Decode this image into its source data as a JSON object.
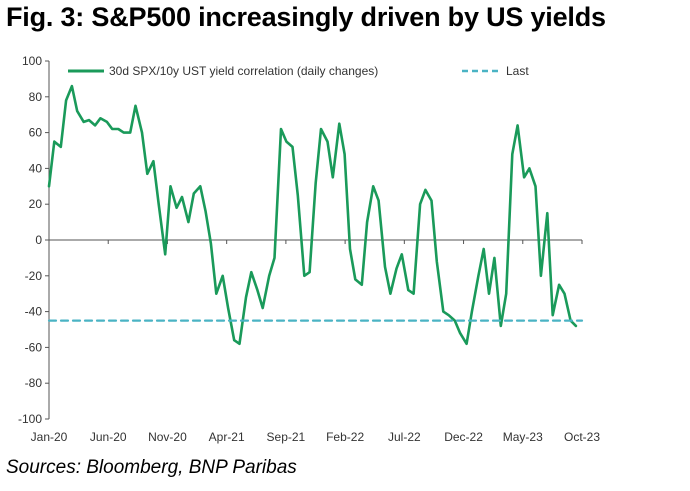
{
  "title": "Fig. 3: S&P500 increasingly driven by US yields",
  "source": "Sources: Bloomberg, BNP Paribas",
  "colors": {
    "series": "#1a9a5a",
    "last": "#4ab3c4",
    "axis": "#555555"
  },
  "chart_data": {
    "type": "line",
    "title": "Fig. 3: S&P500 increasingly driven by US yields",
    "xlabel": "",
    "ylabel": "",
    "ylim": [
      -100,
      100
    ],
    "yticks": [
      100,
      80,
      60,
      40,
      20,
      0,
      -20,
      -40,
      -60,
      -80,
      -100
    ],
    "xlim": [
      "2020-01-01",
      "2023-10-31"
    ],
    "xticks": [
      "Jan-20",
      "Jun-20",
      "Nov-20",
      "Apr-21",
      "Sep-21",
      "Feb-22",
      "Jul-22",
      "Dec-22",
      "May-23",
      "Oct-23"
    ],
    "grid": false,
    "legend": "top",
    "series": [
      {
        "name": "30d SPX/10y UST yield correlation (daily changes)",
        "style": "solid",
        "x": [
          "2020-01-01",
          "2020-01-15",
          "2020-02-01",
          "2020-02-15",
          "2020-03-01",
          "2020-03-15",
          "2020-04-01",
          "2020-04-15",
          "2020-05-01",
          "2020-05-15",
          "2020-06-01",
          "2020-06-15",
          "2020-07-01",
          "2020-07-15",
          "2020-08-01",
          "2020-08-15",
          "2020-09-01",
          "2020-09-15",
          "2020-10-01",
          "2020-10-15",
          "2020-11-01",
          "2020-11-15",
          "2020-12-01",
          "2020-12-15",
          "2021-01-01",
          "2021-01-15",
          "2021-02-01",
          "2021-02-15",
          "2021-03-01",
          "2021-03-15",
          "2021-04-01",
          "2021-04-15",
          "2021-05-01",
          "2021-05-15",
          "2021-06-01",
          "2021-06-15",
          "2021-07-01",
          "2021-07-15",
          "2021-08-01",
          "2021-08-15",
          "2021-09-01",
          "2021-09-15",
          "2021-10-01",
          "2021-10-15",
          "2021-11-01",
          "2021-11-15",
          "2021-12-01",
          "2021-12-15",
          "2022-01-01",
          "2022-01-15",
          "2022-02-01",
          "2022-02-15",
          "2022-03-01",
          "2022-03-15",
          "2022-04-01",
          "2022-04-15",
          "2022-05-01",
          "2022-05-15",
          "2022-06-01",
          "2022-06-15",
          "2022-07-01",
          "2022-07-15",
          "2022-08-01",
          "2022-08-15",
          "2022-09-01",
          "2022-09-15",
          "2022-10-01",
          "2022-10-15",
          "2022-11-01",
          "2022-11-15",
          "2022-12-01",
          "2022-12-15",
          "2023-01-01",
          "2023-01-15",
          "2023-02-01",
          "2023-02-15",
          "2023-03-01",
          "2023-03-15",
          "2023-04-01",
          "2023-04-15",
          "2023-05-01",
          "2023-05-15",
          "2023-06-01",
          "2023-06-15",
          "2023-07-01",
          "2023-07-15",
          "2023-08-01",
          "2023-08-15",
          "2023-09-01",
          "2023-09-15",
          "2023-10-01",
          "2023-10-15"
        ],
        "y": [
          30,
          55,
          52,
          78,
          86,
          72,
          66,
          67,
          64,
          68,
          66,
          62,
          62,
          60,
          60,
          75,
          60,
          37,
          44,
          20,
          -8,
          30,
          18,
          24,
          10,
          26,
          30,
          16,
          -2,
          -30,
          -20,
          -38,
          -56,
          -58,
          -32,
          -18,
          -28,
          -38,
          -20,
          -10,
          62,
          55,
          52,
          25,
          -20,
          -18,
          32,
          62,
          55,
          35,
          65,
          48,
          -5,
          -22,
          -25,
          10,
          30,
          22,
          -15,
          -30,
          -16,
          -8,
          -28,
          -30,
          20,
          28,
          22,
          -12,
          -40,
          -42,
          -45,
          -52,
          -58,
          -40,
          -20,
          -5,
          -30,
          -10,
          -48,
          -30,
          48,
          64,
          35,
          40,
          30,
          -20,
          15,
          -42,
          -25,
          -30,
          -45,
          -48
        ]
      },
      {
        "name": "Last",
        "style": "dashed",
        "x": [
          "2020-01-01",
          "2023-10-31"
        ],
        "y": [
          -45,
          -45
        ]
      }
    ]
  }
}
